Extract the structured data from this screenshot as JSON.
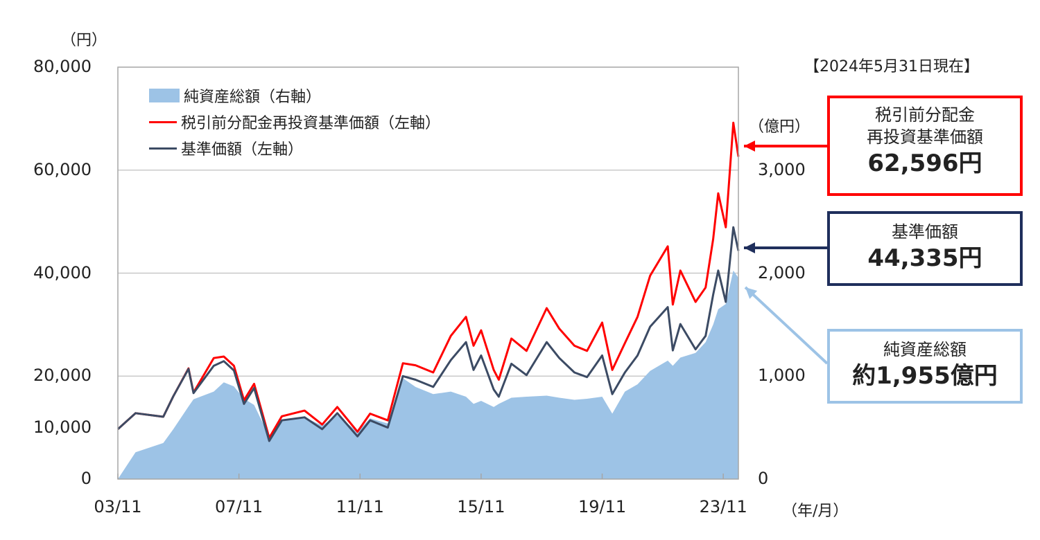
{
  "chart_data": {
    "type": "area+line",
    "left_unit": "（円）",
    "right_unit": "（億円）",
    "x_unit": "（年/月）",
    "as_of": "【2024年5月31日現在】",
    "left_ylim": [
      0,
      80000
    ],
    "right_ylim": [
      0,
      4000
    ],
    "left_ticks": [
      "0",
      "10,000",
      "20,000",
      "40,000",
      "60,000",
      "80,000"
    ],
    "left_tick_values": [
      0,
      10000,
      20000,
      40000,
      60000,
      80000
    ],
    "right_ticks": [
      "0",
      "1,000",
      "2,000",
      "3,000"
    ],
    "right_tick_values": [
      0,
      1000,
      2000,
      3000
    ],
    "x_ticks": [
      "03/11",
      "07/11",
      "11/11",
      "15/11",
      "19/11",
      "23/11"
    ],
    "x_tick_dates": [
      "2003-11",
      "2007-11",
      "2011-11",
      "2015-11",
      "2019-11",
      "2023-11"
    ],
    "xlim": [
      "2003-11",
      "2024-05"
    ],
    "grid": "horizontal",
    "legend_position": "top-left",
    "colors": {
      "area": "#9dc3e6",
      "reinvested": "#ff0000",
      "nav": "#3c4b64"
    },
    "legend": [
      "純資産総額（右軸）",
      "税引前分配金再投資基準価額（左軸）",
      "基準価額（左軸）"
    ],
    "dates": [
      "2003-11",
      "2004-06",
      "2005-05",
      "2005-09",
      "2006-03",
      "2006-05",
      "2007-01",
      "2007-05",
      "2007-09",
      "2008-01",
      "2008-05",
      "2008-11",
      "2009-04",
      "2010-01",
      "2010-08",
      "2011-02",
      "2011-10",
      "2012-03",
      "2012-10",
      "2013-04",
      "2013-09",
      "2014-04",
      "2014-11",
      "2015-05",
      "2015-08",
      "2015-11",
      "2016-04",
      "2016-06",
      "2016-11",
      "2017-05",
      "2018-01",
      "2018-06",
      "2018-12",
      "2019-05",
      "2019-11",
      "2020-03",
      "2020-08",
      "2021-01",
      "2021-06",
      "2022-01",
      "2022-03",
      "2022-06",
      "2022-12",
      "2023-04",
      "2023-07",
      "2023-09",
      "2023-12",
      "2024-03",
      "2024-05"
    ],
    "series": [
      {
        "name": "純資産総額（右軸）",
        "axis": "right",
        "values": [
          0,
          260,
          350,
          485,
          705,
          775,
          850,
          940,
          900,
          780,
          720,
          415,
          560,
          600,
          520,
          620,
          460,
          590,
          540,
          980,
          895,
          825,
          850,
          800,
          730,
          760,
          700,
          730,
          790,
          800,
          810,
          790,
          770,
          780,
          800,
          635,
          850,
          920,
          1050,
          1150,
          1100,
          1180,
          1225,
          1330,
          1500,
          1650,
          1700,
          2025,
          1955
        ]
      },
      {
        "name": "税引前分配金再投資基準価額（左軸）",
        "axis": "left",
        "values": [
          9700,
          12800,
          12100,
          16100,
          21500,
          16800,
          23500,
          23800,
          22000,
          15300,
          18500,
          8000,
          12200,
          13300,
          10600,
          14000,
          9200,
          12700,
          11400,
          22500,
          22100,
          20700,
          27800,
          31500,
          25900,
          28900,
          21200,
          19300,
          27300,
          24900,
          33200,
          29200,
          25900,
          24900,
          30400,
          21200,
          26400,
          31500,
          39500,
          45200,
          33900,
          40500,
          34400,
          37200,
          46600,
          55500,
          48900,
          69200,
          62596
        ]
      },
      {
        "name": "基準価額（左軸）",
        "axis": "left",
        "values": [
          9700,
          12800,
          12100,
          16100,
          21400,
          16700,
          22000,
          22900,
          21100,
          14600,
          17700,
          7400,
          11400,
          12000,
          9700,
          12800,
          8300,
          11400,
          10000,
          20000,
          19300,
          17900,
          23100,
          26600,
          21200,
          24000,
          17400,
          16000,
          22400,
          20200,
          26600,
          23500,
          20700,
          19800,
          24000,
          16500,
          20700,
          24000,
          29600,
          33400,
          25000,
          30100,
          25200,
          27800,
          35800,
          40500,
          34400,
          48900,
          44335
        ]
      }
    ]
  },
  "callouts": {
    "reinvested": {
      "label_1": "税引前分配金",
      "label_2": "再投資基準価額",
      "value": "62,596円"
    },
    "nav": {
      "label": "基準価額",
      "value": "44,335円"
    },
    "assets": {
      "label": "純資産総額",
      "value": "約1,955億円"
    }
  }
}
